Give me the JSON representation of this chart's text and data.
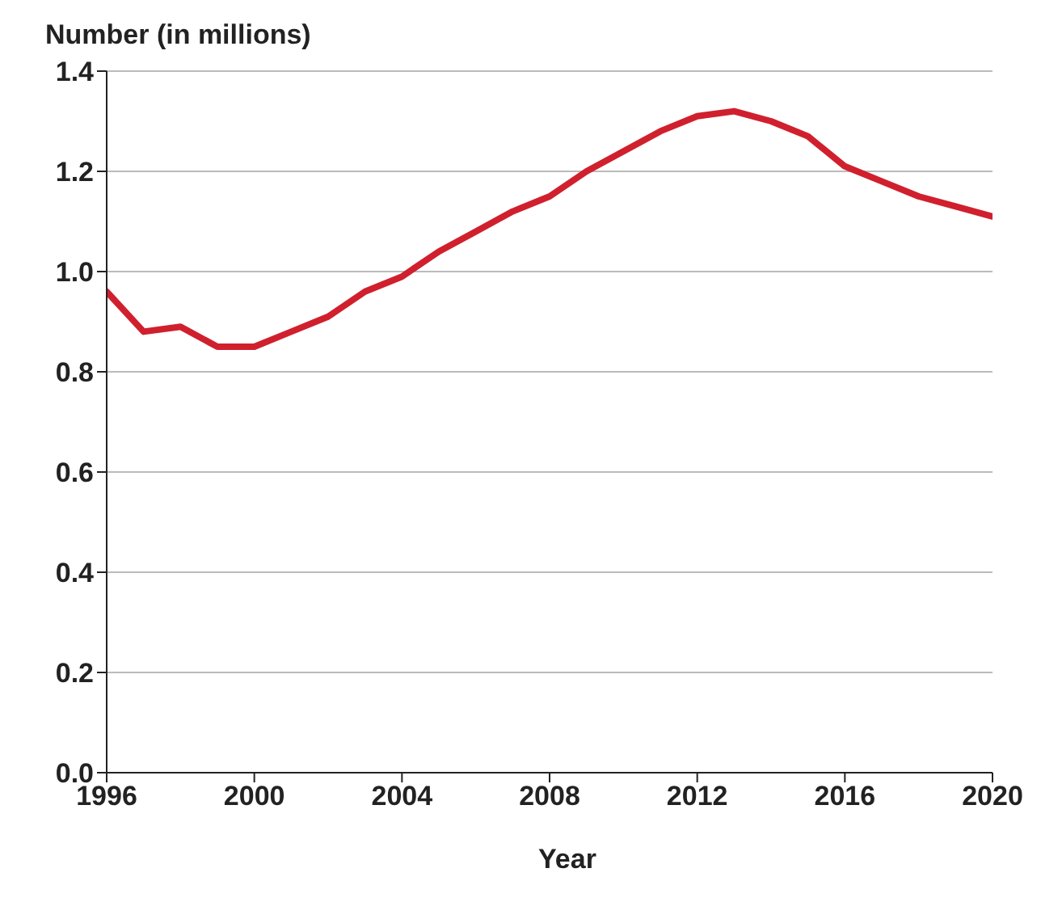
{
  "chart_data": {
    "type": "line",
    "ylabel": "Number (in millions)",
    "xlabel": "Year",
    "x": [
      1996,
      1997,
      1998,
      1999,
      2000,
      2001,
      2002,
      2003,
      2004,
      2005,
      2006,
      2007,
      2008,
      2009,
      2010,
      2011,
      2012,
      2013,
      2014,
      2015,
      2016,
      2017,
      2018,
      2019,
      2020
    ],
    "series": [
      {
        "color": "#d0202e",
        "values": [
          0.96,
          0.88,
          0.89,
          0.85,
          0.85,
          0.88,
          0.91,
          0.96,
          0.99,
          1.04,
          1.08,
          1.12,
          1.15,
          1.2,
          1.24,
          1.28,
          1.31,
          1.32,
          1.3,
          1.27,
          1.21,
          1.18,
          1.15,
          1.13,
          1.11
        ]
      }
    ],
    "xlim": [
      1996,
      2020
    ],
    "xticks": [
      1996,
      2000,
      2004,
      2008,
      2012,
      2016,
      2020
    ],
    "ylim": [
      0,
      1.4
    ],
    "yticks": [
      {
        "value": 0,
        "label": "0.0"
      },
      {
        "value": 0.2,
        "label": "0.2"
      },
      {
        "value": 0.4,
        "label": "0.4"
      },
      {
        "value": 0.6,
        "label": "0.6"
      },
      {
        "value": 0.8,
        "label": "0.8"
      },
      {
        "value": 1,
        "label": "1.0"
      },
      {
        "value": 1.2,
        "label": "1.2"
      },
      {
        "value": 1.4,
        "label": "1.4"
      }
    ],
    "grid": "y",
    "marker": "none",
    "line_style": "solid"
  }
}
